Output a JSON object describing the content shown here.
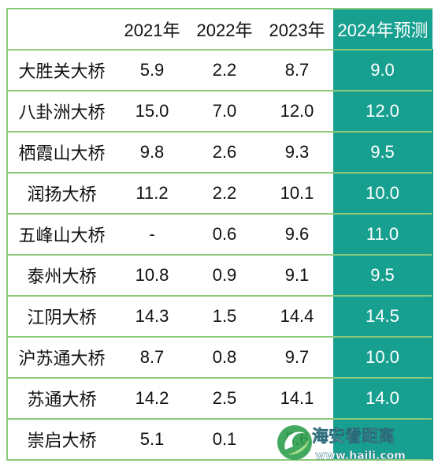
{
  "chart_data": {
    "type": "table",
    "columns": [
      "",
      "2021年",
      "2022年",
      "2023年",
      "2024年预测"
    ],
    "rows": [
      {
        "name": "大胜关大桥",
        "values": [
          "5.9",
          "2.2",
          "8.7",
          "9.0"
        ]
      },
      {
        "name": "八卦洲大桥",
        "values": [
          "15.0",
          "7.0",
          "12.0",
          "12.0"
        ]
      },
      {
        "name": "栖霞山大桥",
        "values": [
          "9.8",
          "2.6",
          "9.3",
          "9.5"
        ]
      },
      {
        "name": "润扬大桥",
        "values": [
          "11.2",
          "2.2",
          "10.1",
          "10.0"
        ]
      },
      {
        "name": "五峰山大桥",
        "values": [
          "-",
          "0.6",
          "9.6",
          "11.0"
        ]
      },
      {
        "name": "泰州大桥",
        "values": [
          "10.8",
          "0.9",
          "9.1",
          "9.5"
        ]
      },
      {
        "name": "江阴大桥",
        "values": [
          "14.3",
          "1.5",
          "14.4",
          "14.5"
        ]
      },
      {
        "name": "沪苏通大桥",
        "values": [
          "8.7",
          "0.8",
          "9.7",
          "10.0"
        ]
      },
      {
        "name": "苏通大桥",
        "values": [
          "14.2",
          "2.5",
          "14.1",
          "14.0"
        ]
      },
      {
        "name": "崇启大桥",
        "values": [
          "5.1",
          "0.1",
          "5.6",
          ""
        ]
      }
    ],
    "highlight_color": "#17a090",
    "border_color": "#8cc97a"
  },
  "watermark": {
    "brand": "海安看距离",
    "url": "www.haili.com",
    "icon": "green-swirl-logo"
  }
}
